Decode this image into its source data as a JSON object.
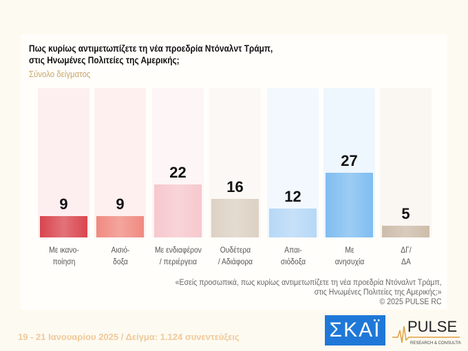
{
  "chart_data": {
    "type": "bar",
    "title": "Πως κυρίως αντιμετωπίζετε τη νέα προεδρία Ντόναλντ Τράμπ,",
    "title_line2": "στις Ηνωμένες Πολιτείες της Αμερικής;",
    "subtitle": "Σύνολο δείγματος",
    "categories": [
      [
        "Με ικανο-",
        "ποίηση"
      ],
      [
        "Αισιό-",
        "δοξα"
      ],
      [
        "Με ενδιαφέρον",
        "/ περιέργεια"
      ],
      [
        "Ουδέτερα",
        "/ Αδιάφορα"
      ],
      [
        "Απαι-",
        "σιόδοξα"
      ],
      [
        "Με",
        "ανησυχία"
      ],
      [
        "ΔΓ/",
        "ΔΑ"
      ]
    ],
    "values": [
      9,
      9,
      22,
      16,
      12,
      27,
      5
    ],
    "colors": [
      "#d9454e",
      "#f08a80",
      "#f6c8cd",
      "#dcd1c3",
      "#b6d8f6",
      "#7fbdf0",
      "#cdbcaa"
    ],
    "bg_colors": [
      "#fdeef0",
      "#fdf0ef",
      "#fdf5f6",
      "#fbf8f5",
      "#f2f8fe",
      "#eef6fe",
      "#faf6f2"
    ],
    "ylim": [
      0,
      62
    ],
    "grid": false
  },
  "note": [
    "«Εσείς προσωπικά, πως κυρίως αντιμετωπίζετε τη νέα προεδρία Ντόναλντ Τράμπ,",
    "στις Ηνωμένες Πολιτείες της Αμερικής;»",
    "©  2025  PULSE RC"
  ],
  "footer": "19 - 21 Ιανουαρίου 2025  /  Δείγμα:  1.124 συνεντεύξεις",
  "logos": {
    "skai": "ΣΚΑΪ",
    "pulse": "PULSE",
    "pulse_sub": "RESEARCH & CONSULTING"
  }
}
